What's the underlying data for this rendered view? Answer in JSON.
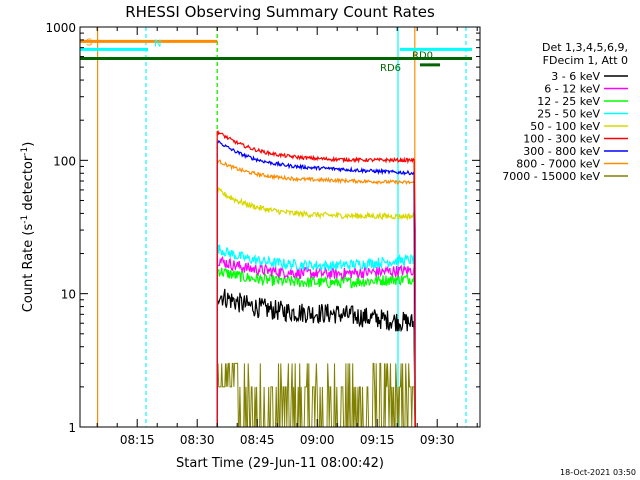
{
  "chart_data": {
    "type": "line",
    "title": "RHESSI Observing Summary Count Rates",
    "xlabel": "Start Time (29-Jun-11 08:00:42)",
    "ylabel_main": "Count Rate (s",
    "ylabel_sup1": "-1",
    "ylabel_mid": " detector",
    "ylabel_sup2": "-1",
    "ylabel_end": ")",
    "x_range_min": [
      0,
      100
    ],
    "y_range": [
      1,
      1000
    ],
    "y_scale": "log",
    "y_ticks": [
      {
        "value": 1,
        "label": "1"
      },
      {
        "value": 10,
        "label": "10"
      },
      {
        "value": 100,
        "label": "100"
      },
      {
        "value": 1000,
        "label": "1000"
      }
    ],
    "x_ticks": [
      {
        "value": 14.3,
        "label": "08:15"
      },
      {
        "value": 29.3,
        "label": "08:30"
      },
      {
        "value": 44.3,
        "label": "08:45"
      },
      {
        "value": 59.3,
        "label": "09:00"
      },
      {
        "value": 74.3,
        "label": "09:15"
      },
      {
        "value": 89.3,
        "label": "09:30"
      }
    ],
    "legend_header": [
      "Det 1,3,4,5,6,9,",
      "FDecim 1, Att 0"
    ],
    "legend_placement": "right",
    "series": [
      {
        "name": "3 - 6 keV",
        "color": "#000000",
        "key": "s1"
      },
      {
        "name": "6 - 12 keV",
        "color": "#ff00ff",
        "key": "s2"
      },
      {
        "name": "12 - 25 keV",
        "color": "#00ff00",
        "key": "s3"
      },
      {
        "name": "25 - 50 keV",
        "color": "#00ffff",
        "key": "s4"
      },
      {
        "name": "50 - 100 keV",
        "color": "#d8d800",
        "key": "s5"
      },
      {
        "name": "100 - 300 keV",
        "color": "#ff0000",
        "key": "s6"
      },
      {
        "name": "300 - 800 keV",
        "color": "#0000ff",
        "key": "s7"
      },
      {
        "name": "800 - 7000 keV",
        "color": "#ff8c00",
        "key": "s8"
      },
      {
        "name": "7000 - 15000 keV",
        "color": "#808000",
        "key": "s9"
      }
    ],
    "data_start_min": 34.3,
    "data_end_min": 83.5,
    "levels": {
      "s6": {
        "start": 165,
        "mid": 100,
        "end": 100
      },
      "s7": {
        "start": 140,
        "mid": 85,
        "end": 80
      },
      "s8": {
        "start": 100,
        "mid": 70,
        "end": 68
      },
      "s5": {
        "start": 60,
        "mid": 38,
        "end": 38
      },
      "s4": {
        "start": 22,
        "mid": 16,
        "end": 18
      },
      "s2": {
        "start": 18,
        "mid": 14,
        "end": 15
      },
      "s3": {
        "start": 15,
        "mid": 12,
        "end": 13
      },
      "s1": {
        "start": 10,
        "mid": 7,
        "end": 6
      },
      "s9": {
        "start": 3,
        "mid": 1.8,
        "end": 1.5
      }
    },
    "bars": [
      {
        "label": "S",
        "color": "#ff8c00",
        "start_min": 0,
        "end_min": 34.3,
        "y_value": 780
      },
      {
        "label": "N",
        "color": "#00ffff",
        "start_min": 0,
        "end_min": 17,
        "y_value": 680
      },
      {
        "label": "",
        "color": "#00ffff",
        "start_min": 80,
        "end_min": 98,
        "y_value": 680
      },
      {
        "label": "",
        "color": "#006400",
        "start_min": 0,
        "end_min": 98,
        "y_value": 580
      },
      {
        "label": "RD0",
        "color": "#006400",
        "start_min": 85,
        "end_min": 90,
        "y_value": 520
      },
      {
        "label": "RD6",
        "color": "#006400",
        "start_min": 0,
        "end_min": 0,
        "y_value": 520
      }
    ],
    "vlines": [
      {
        "x_min": 4.4,
        "color": "#ff8c00",
        "dashed": false
      },
      {
        "x_min": 16.5,
        "color": "#00ffff",
        "dashed": true
      },
      {
        "x_min": 34.3,
        "color": "#ff8c00",
        "dashed": true
      },
      {
        "x_min": 34.3,
        "color": "#00ff00",
        "dashed": true
      },
      {
        "x_min": 79.5,
        "color": "#00ffff",
        "dashed": false
      },
      {
        "x_min": 83.7,
        "color": "#ff8c00",
        "dashed": false
      },
      {
        "x_min": 96.5,
        "color": "#00ffff",
        "dashed": true
      }
    ],
    "footer_date": "18-Oct-2021 03:50"
  }
}
